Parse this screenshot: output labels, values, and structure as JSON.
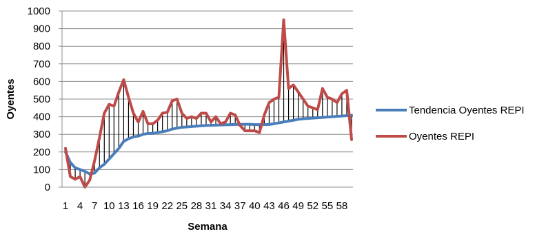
{
  "chart_data": {
    "type": "line",
    "title": "",
    "xlabel": "Semana",
    "ylabel": "Oyentes",
    "ylim": [
      0,
      1000
    ],
    "y_ticks": [
      0,
      100,
      200,
      300,
      400,
      500,
      600,
      700,
      800,
      900,
      1000
    ],
    "x_tick_labels": [
      "1",
      "4",
      "7",
      "10",
      "13",
      "16",
      "19",
      "22",
      "25",
      "28",
      "31",
      "34",
      "37",
      "40",
      "43",
      "46",
      "49",
      "52",
      "55",
      "58"
    ],
    "x": [
      1,
      2,
      3,
      4,
      5,
      6,
      7,
      8,
      9,
      10,
      11,
      12,
      13,
      14,
      15,
      16,
      17,
      18,
      19,
      20,
      21,
      22,
      23,
      24,
      25,
      26,
      27,
      28,
      29,
      30,
      31,
      32,
      33,
      34,
      35,
      36,
      37,
      38,
      39,
      40,
      41,
      42,
      43,
      44,
      45,
      46,
      47,
      48,
      49,
      50,
      51,
      52,
      53,
      54,
      55,
      56,
      57,
      58,
      59,
      60
    ],
    "grid": "horizontal",
    "legend_position": "right",
    "drop_lines": true,
    "series": [
      {
        "name": "Tendencia Oyentes REPI",
        "color": "#4a7ebb",
        "values": [
          200,
          140,
          110,
          100,
          90,
          75,
          80,
          110,
          130,
          160,
          190,
          220,
          260,
          275,
          285,
          290,
          300,
          305,
          305,
          310,
          315,
          320,
          330,
          335,
          340,
          342,
          344,
          346,
          348,
          350,
          351,
          352,
          353,
          354,
          355,
          356,
          356,
          357,
          357,
          355,
          355,
          355,
          356,
          360,
          365,
          370,
          375,
          380,
          385,
          388,
          390,
          392,
          394,
          396,
          398,
          400,
          402,
          404,
          406,
          408
        ],
        "line_width": 4
      },
      {
        "name": "Oyentes REPI",
        "color": "#be4b48",
        "values": [
          220,
          60,
          45,
          60,
          0,
          40,
          150,
          280,
          420,
          470,
          460,
          540,
          610,
          510,
          420,
          370,
          430,
          360,
          360,
          380,
          420,
          425,
          490,
          500,
          420,
          390,
          400,
          390,
          420,
          420,
          370,
          400,
          360,
          370,
          420,
          410,
          350,
          320,
          320,
          320,
          310,
          410,
          480,
          500,
          510,
          950,
          560,
          580,
          540,
          500,
          460,
          450,
          440,
          560,
          510,
          500,
          480,
          530,
          550,
          270
        ],
        "line_width": 4
      }
    ]
  }
}
